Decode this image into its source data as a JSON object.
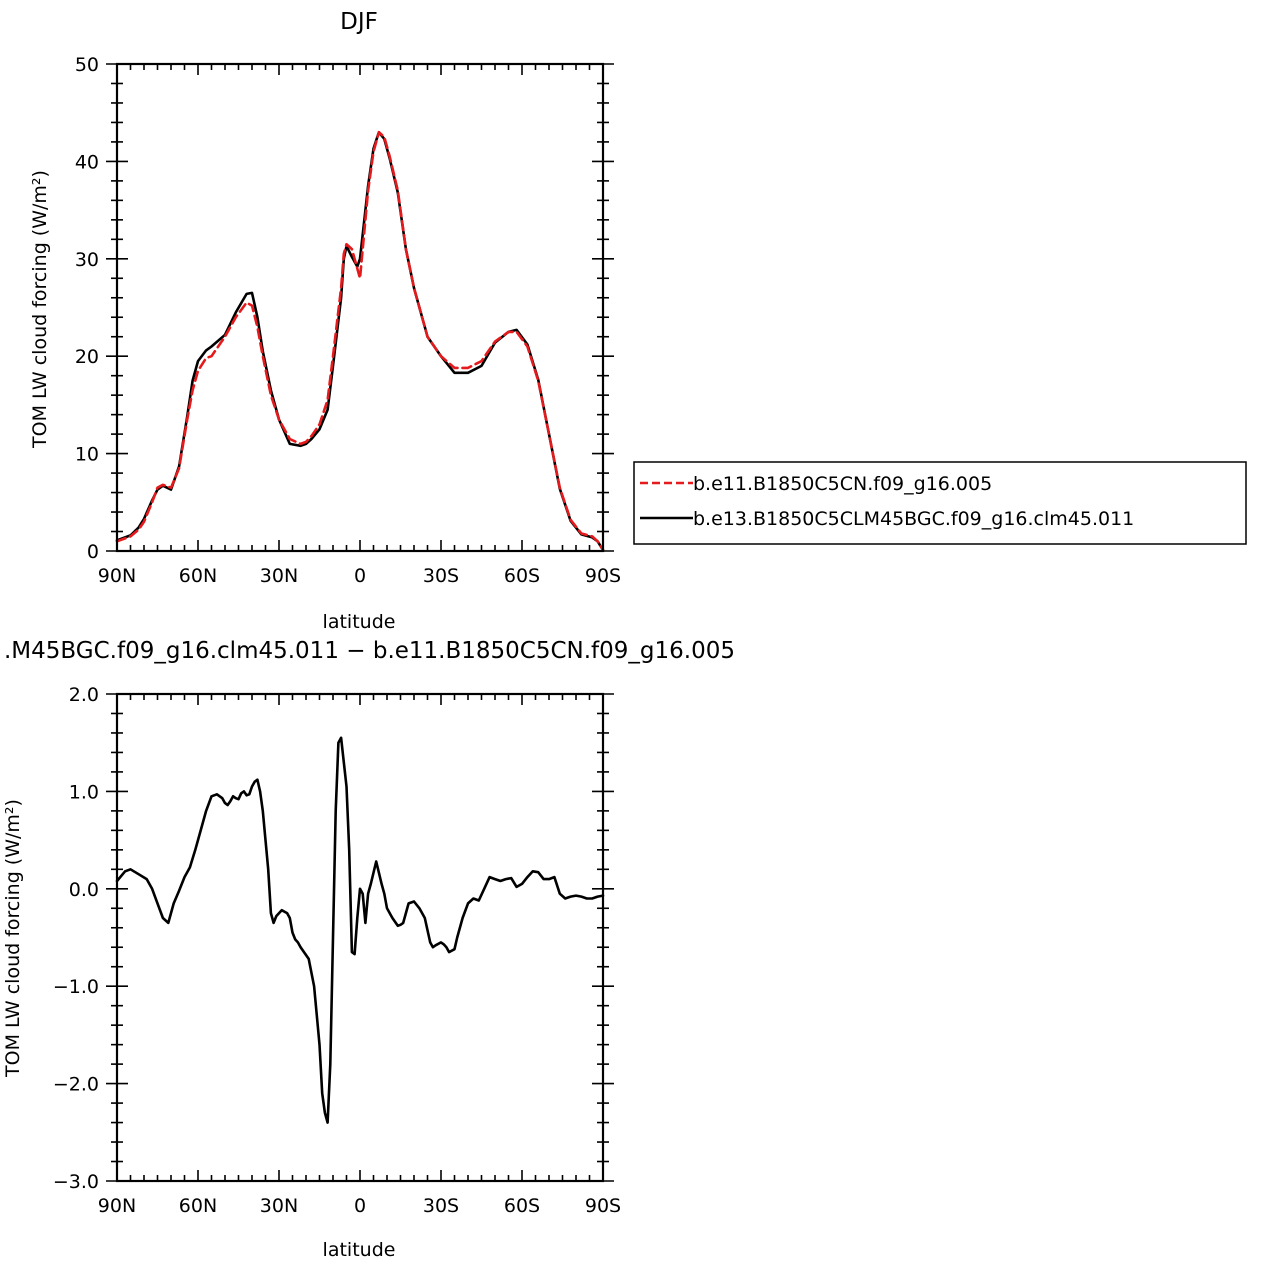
{
  "chart_data": [
    {
      "type": "line",
      "title": "DJF",
      "xlabel": "latitude",
      "ylabel": "TOM LW cloud forcing (W/m²)",
      "xlim": [
        90,
        -90
      ],
      "ylim": [
        0,
        50
      ],
      "xticks": [
        {
          "value": 90,
          "label": "90N"
        },
        {
          "value": 60,
          "label": "60N"
        },
        {
          "value": 30,
          "label": "30N"
        },
        {
          "value": 0,
          "label": "0"
        },
        {
          "value": -30,
          "label": "30S"
        },
        {
          "value": -60,
          "label": "60S"
        },
        {
          "value": -90,
          "label": "90S"
        }
      ],
      "yticks": [
        {
          "value": 0,
          "label": "0"
        },
        {
          "value": 10,
          "label": "10"
        },
        {
          "value": 20,
          "label": "20"
        },
        {
          "value": 30,
          "label": "30"
        },
        {
          "value": 40,
          "label": "40"
        },
        {
          "value": 50,
          "label": "50"
        }
      ],
      "legend_position": "right",
      "series": [
        {
          "name": "b.e11.B1850C5CN.f09_g16.005",
          "color": "#e41a1c",
          "dash": "dashed",
          "x": [
            90,
            85,
            82,
            80,
            77,
            75,
            73,
            70,
            67,
            64,
            62,
            60,
            57,
            55,
            50,
            46,
            42,
            40,
            38,
            36,
            33,
            30,
            26,
            22,
            20,
            18,
            15,
            12,
            10,
            7,
            6,
            5,
            3,
            1,
            0,
            -3,
            -5,
            -7,
            -9,
            -11,
            -14,
            -17,
            -20,
            -25,
            -30,
            -35,
            -40,
            -45,
            -50,
            -55,
            -58,
            -62,
            -66,
            -70,
            -74,
            -78,
            -82,
            -86,
            -88,
            -90
          ],
          "y": [
            1,
            1.5,
            2.2,
            3,
            5,
            6.5,
            6.8,
            6.5,
            8.5,
            13.5,
            16.5,
            18.5,
            19.8,
            20,
            22,
            24,
            25.5,
            25.2,
            23,
            20,
            16,
            13.5,
            11.5,
            11,
            11.2,
            11.8,
            13,
            15.5,
            20,
            27,
            30.5,
            31.5,
            31,
            29,
            28,
            37,
            41,
            43,
            42.5,
            40.5,
            37,
            31,
            27,
            22,
            20,
            18.8,
            18.8,
            19.5,
            21.5,
            22.5,
            22.5,
            21,
            17.5,
            12,
            6.5,
            3.2,
            1.8,
            1.5,
            1,
            0.1
          ]
        },
        {
          "name": "b.e13.B1850C5CLM45BGC.f09_g16.clm45.011",
          "color": "#000000",
          "dash": "solid",
          "x": [
            90,
            85,
            82,
            80,
            77,
            75,
            73,
            70,
            67,
            64,
            62,
            60,
            57,
            55,
            50,
            46,
            42,
            40,
            38,
            36,
            33,
            30,
            26,
            22,
            20,
            18,
            15,
            12,
            10,
            7,
            6,
            5,
            3,
            1,
            0,
            -3,
            -5,
            -7,
            -9,
            -11,
            -14,
            -17,
            -20,
            -25,
            -30,
            -35,
            -40,
            -45,
            -50,
            -55,
            -58,
            -62,
            -66,
            -70,
            -74,
            -78,
            -82,
            -86,
            -88,
            -90
          ],
          "y": [
            1.1,
            1.6,
            2.4,
            3.3,
            5.2,
            6.3,
            6.7,
            6.3,
            8.7,
            13.8,
            17.5,
            19.5,
            20.6,
            21,
            22.2,
            24.5,
            26.4,
            26.5,
            24,
            20.5,
            16.5,
            13.5,
            11,
            10.8,
            11,
            11.5,
            12.5,
            14.5,
            19,
            26,
            30,
            31.3,
            30.2,
            29.2,
            30,
            37.5,
            41.3,
            43,
            42.3,
            40.3,
            36.8,
            31,
            27,
            22,
            20,
            18.3,
            18.3,
            19,
            21.4,
            22.5,
            22.7,
            21.2,
            17.6,
            12,
            6.4,
            3.1,
            1.7,
            1.4,
            1,
            0.1
          ]
        }
      ]
    },
    {
      "type": "line",
      "title": ".M45BGC.f09_g16.clm45.011 − b.e11.B1850C5CN.f09_g16.005",
      "xlabel": "latitude",
      "ylabel": "TOM LW cloud forcing (W/m²)",
      "xlim": [
        90,
        -90
      ],
      "ylim": [
        -3,
        2
      ],
      "xticks": [
        {
          "value": 90,
          "label": "90N"
        },
        {
          "value": 60,
          "label": "60N"
        },
        {
          "value": 30,
          "label": "30N"
        },
        {
          "value": 0,
          "label": "0"
        },
        {
          "value": -30,
          "label": "30S"
        },
        {
          "value": -60,
          "label": "60S"
        },
        {
          "value": -90,
          "label": "90S"
        }
      ],
      "yticks": [
        {
          "value": 2,
          "label": "2.0"
        },
        {
          "value": 1,
          "label": "1.0"
        },
        {
          "value": 0,
          "label": "0.0"
        },
        {
          "value": -1,
          "label": "−1.0"
        },
        {
          "value": -2,
          "label": "−2.0"
        },
        {
          "value": -3,
          "label": "−3.0"
        }
      ],
      "series": [
        {
          "name": "",
          "color": "#000000",
          "dash": "solid",
          "x": [
            90,
            87,
            85,
            82,
            79,
            77,
            75,
            73,
            71,
            69,
            67,
            65,
            63,
            61,
            59,
            57,
            55,
            53,
            51,
            50,
            49,
            48,
            47,
            46,
            45,
            44,
            43,
            42,
            41,
            40,
            39,
            38,
            37,
            36,
            35,
            34,
            33,
            32,
            31,
            29,
            27,
            26,
            25,
            24,
            23,
            22,
            20,
            19,
            17,
            15,
            14,
            13,
            12,
            11,
            10,
            9,
            8,
            7,
            6,
            5,
            4,
            3,
            2,
            1,
            0,
            -1,
            -2,
            -3,
            -4,
            -6,
            -8,
            -9,
            -10,
            -12,
            -14,
            -15,
            -16,
            -18,
            -20,
            -22,
            -24,
            -26,
            -27,
            -28,
            -30,
            -31,
            -32,
            -33,
            -35,
            -36,
            -38,
            -40,
            -42,
            -44,
            -46,
            -48,
            -50,
            -52,
            -54,
            -56,
            -58,
            -60,
            -62,
            -64,
            -66,
            -68,
            -70,
            -72,
            -74,
            -76,
            -78,
            -80,
            -82,
            -84,
            -86,
            -88,
            -90
          ],
          "y": [
            0.08,
            0.18,
            0.2,
            0.15,
            0.1,
            0,
            -0.15,
            -0.3,
            -0.35,
            -0.15,
            -0.02,
            0.12,
            0.22,
            0.4,
            0.6,
            0.8,
            0.95,
            0.97,
            0.93,
            0.88,
            0.86,
            0.9,
            0.95,
            0.93,
            0.92,
            0.98,
            1.0,
            0.96,
            0.97,
            1.05,
            1.1,
            1.12,
            1.0,
            0.8,
            0.5,
            0.2,
            -0.25,
            -0.35,
            -0.28,
            -0.22,
            -0.25,
            -0.3,
            -0.45,
            -0.52,
            -0.55,
            -0.6,
            -0.68,
            -0.72,
            -1.0,
            -1.6,
            -2.1,
            -2.3,
            -2.4,
            -1.8,
            -0.5,
            0.8,
            1.5,
            1.55,
            1.3,
            1.05,
            0.4,
            -0.65,
            -0.67,
            -0.3,
            0.0,
            -0.05,
            -0.35,
            -0.05,
            0.05,
            0.28,
            0.05,
            -0.05,
            -0.2,
            -0.3,
            -0.38,
            -0.37,
            -0.35,
            -0.15,
            -0.13,
            -0.2,
            -0.3,
            -0.55,
            -0.6,
            -0.58,
            -0.55,
            -0.57,
            -0.6,
            -0.65,
            -0.62,
            -0.5,
            -0.3,
            -0.15,
            -0.1,
            -0.12,
            0.0,
            0.12,
            0.1,
            0.08,
            0.1,
            0.11,
            0.02,
            0.05,
            0.12,
            0.18,
            0.17,
            0.1,
            0.1,
            0.12,
            -0.05,
            -0.1,
            -0.08,
            -0.07,
            -0.08,
            -0.1,
            -0.1,
            -0.08,
            -0.07
          ]
        }
      ]
    }
  ]
}
